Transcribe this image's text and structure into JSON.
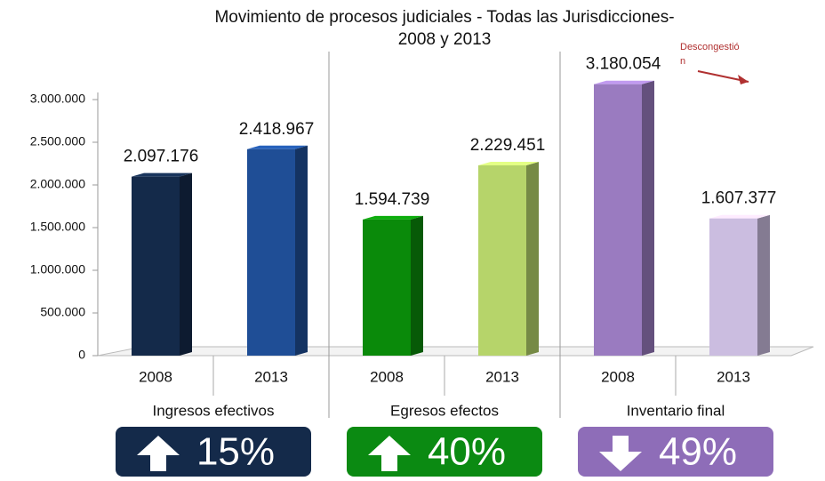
{
  "chart_data": {
    "type": "bar",
    "title": [
      "Movimiento de procesos judiciales - Todas las Jurisdicciones-",
      "2008 y 2013"
    ],
    "categories": [
      "2008",
      "2013",
      "2008",
      "2013",
      "2008",
      "2013"
    ],
    "groups": [
      {
        "name": "Ingresos efectivos",
        "badge": "15%",
        "direction": "up",
        "color": "#142a4a"
      },
      {
        "name": "Egresos efectos",
        "badge": "40%",
        "direction": "up",
        "color": "#0b8a12"
      },
      {
        "name": "Inventario final",
        "badge": "49%",
        "direction": "down",
        "color": "#8e6db8"
      }
    ],
    "values": [
      2097176,
      2418967,
      1594739,
      2229451,
      3180054,
      1607377
    ],
    "value_labels": [
      "2.097.176",
      "2.418.967",
      "1.594.739",
      "2.229.451",
      "3.180.054",
      "1.607.377"
    ],
    "colors": [
      "#142a4a",
      "#1f4e96",
      "#0a8a0a",
      "#b6d46a",
      "#9a7bc0",
      "#cbbde0"
    ],
    "ylim": [
      0,
      3500000
    ],
    "yticks": [
      0,
      {
        "value": 500000,
        "label": "500.000"
      },
      {
        "value": 1000000,
        "label": "1.000.000"
      },
      {
        "value": 1500000,
        "label": "1.500.000"
      },
      {
        "value": 2000000,
        "label": "2.000.000"
      },
      {
        "value": 2500000,
        "label": "2.500.000"
      },
      {
        "value": 3000000,
        "label": "3.000.000"
      }
    ],
    "grid": false,
    "annotation": [
      "Descongestió",
      "n"
    ]
  }
}
